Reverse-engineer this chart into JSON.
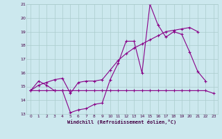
{
  "xlabel": "Windchill (Refroidissement éolien,°C)",
  "bg_color": "#cce8ee",
  "grid_color": "#aacccc",
  "line_color": "#880088",
  "xlim": [
    -0.5,
    23.5
  ],
  "ylim": [
    13,
    21
  ],
  "yticks": [
    13,
    14,
    15,
    16,
    17,
    18,
    19,
    20,
    21
  ],
  "xticks": [
    0,
    1,
    2,
    3,
    4,
    5,
    6,
    7,
    8,
    9,
    10,
    11,
    12,
    13,
    14,
    15,
    16,
    17,
    18,
    19,
    20,
    21,
    22,
    23
  ],
  "series": [
    {
      "x": [
        0,
        1,
        2,
        3,
        4,
        5,
        6,
        7,
        8,
        9,
        10,
        11,
        12,
        13,
        14,
        15,
        16,
        17,
        18,
        19,
        20,
        21,
        22
      ],
      "y": [
        14.7,
        15.4,
        15.1,
        14.7,
        14.7,
        13.1,
        13.3,
        13.4,
        13.7,
        13.8,
        15.5,
        16.7,
        18.3,
        18.3,
        16.0,
        21.0,
        19.5,
        18.6,
        19.0,
        18.8,
        17.5,
        16.1,
        15.4
      ]
    },
    {
      "x": [
        0,
        1,
        2,
        3,
        4,
        5,
        6,
        7,
        8,
        9,
        10,
        11,
        12,
        13,
        14,
        15,
        16,
        17,
        18,
        19,
        20,
        21
      ],
      "y": [
        14.7,
        15.1,
        15.3,
        15.5,
        15.6,
        14.5,
        15.3,
        15.4,
        15.4,
        15.5,
        16.2,
        16.9,
        17.4,
        17.8,
        18.1,
        18.4,
        18.7,
        19.0,
        19.1,
        19.2,
        19.3,
        19.0
      ]
    },
    {
      "x": [
        0,
        1,
        2,
        3,
        4,
        5,
        6,
        7,
        8,
        9,
        10,
        11,
        12,
        13,
        14,
        15,
        16,
        17,
        18,
        19,
        20,
        21,
        22,
        23
      ],
      "y": [
        14.7,
        14.7,
        14.7,
        14.7,
        14.7,
        14.7,
        14.7,
        14.7,
        14.7,
        14.7,
        14.7,
        14.7,
        14.7,
        14.7,
        14.7,
        14.7,
        14.7,
        14.7,
        14.7,
        14.7,
        14.7,
        14.7,
        14.7,
        14.5
      ]
    }
  ]
}
